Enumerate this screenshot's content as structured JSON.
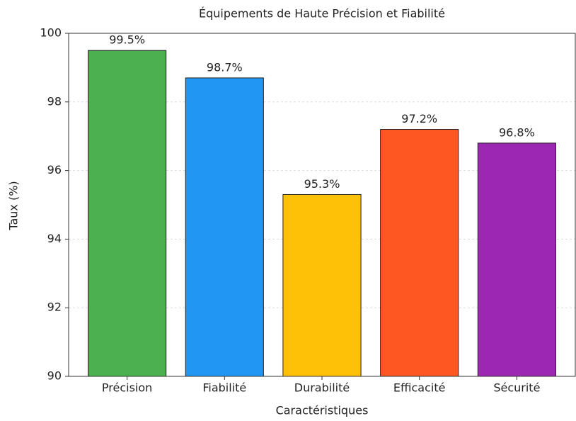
{
  "chart_data": {
    "type": "bar",
    "title": "Équipements de Haute Précision et Fiabilité",
    "xlabel": "Caractéristiques",
    "ylabel": "Taux (%)",
    "categories": [
      "Précision",
      "Fiabilité",
      "Durabilité",
      "Efficacité",
      "Sécurité"
    ],
    "values": [
      99.5,
      98.7,
      95.3,
      97.2,
      96.8
    ],
    "value_labels": [
      "99.5%",
      "98.7%",
      "95.3%",
      "97.2%",
      "96.8%"
    ],
    "colors": [
      "#4caf50",
      "#2196f3",
      "#ffc107",
      "#ff5722",
      "#9c27b0"
    ],
    "ylim": [
      90,
      100
    ],
    "yticks": [
      90,
      92,
      94,
      96,
      98,
      100
    ],
    "grid": true
  }
}
